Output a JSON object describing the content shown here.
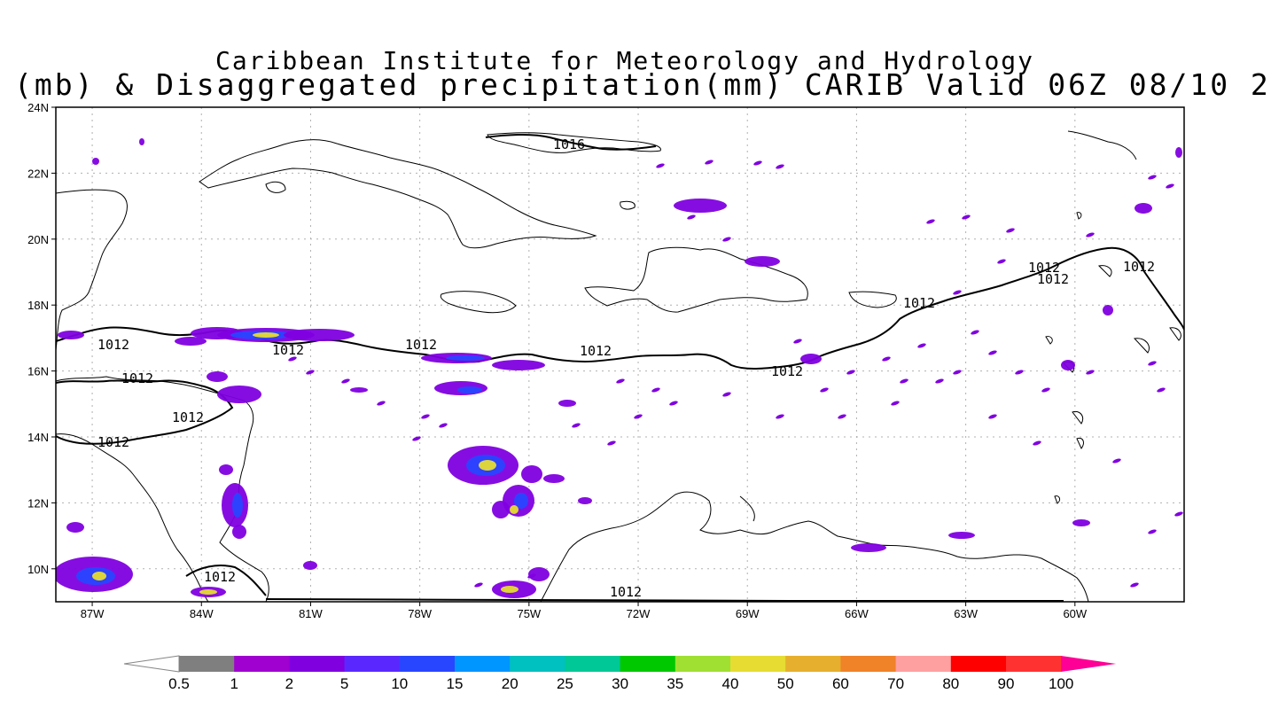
{
  "title": {
    "line1": "Caribbean Institute for Meteorology and Hydrology",
    "line2": "(mb) & Disaggregated precipitation(mm) CARIB Valid 06Z 08/10 2"
  },
  "map": {
    "lon_range": [
      -88,
      -57
    ],
    "lat_range": [
      9,
      24
    ],
    "y_ticks": [
      "24N",
      "22N",
      "20N",
      "18N",
      "16N",
      "14N",
      "12N",
      "10N"
    ],
    "x_ticks": [
      "87W",
      "84W",
      "81W",
      "78W",
      "75W",
      "72W",
      "69W",
      "66W",
      "63W",
      "60W"
    ],
    "isobar_labels": [
      "1016",
      "1012",
      "1012",
      "1012",
      "1012",
      "1012",
      "1012",
      "1012",
      "1012",
      "1012",
      "1012",
      "1012",
      "1012",
      "1012"
    ]
  },
  "legend": {
    "labels": [
      "0.5",
      "1",
      "2",
      "5",
      "10",
      "15",
      "20",
      "25",
      "30",
      "35",
      "40",
      "50",
      "60",
      "70",
      "80",
      "90",
      "100"
    ],
    "colors": [
      "#7f7f7f",
      "#a000d0",
      "#8000e0",
      "#5a28ff",
      "#2846ff",
      "#0096ff",
      "#00c0c0",
      "#00c896",
      "#00c800",
      "#a0e032",
      "#e6dc32",
      "#e6af2d",
      "#f08228",
      "#ffa0a0",
      "#ff0000",
      "#ff3232",
      "#ff0096"
    ]
  },
  "colors": {
    "precip_light": "#8000e0",
    "precip_mid": "#2846ff",
    "precip_heavy": "#e6dc32"
  }
}
